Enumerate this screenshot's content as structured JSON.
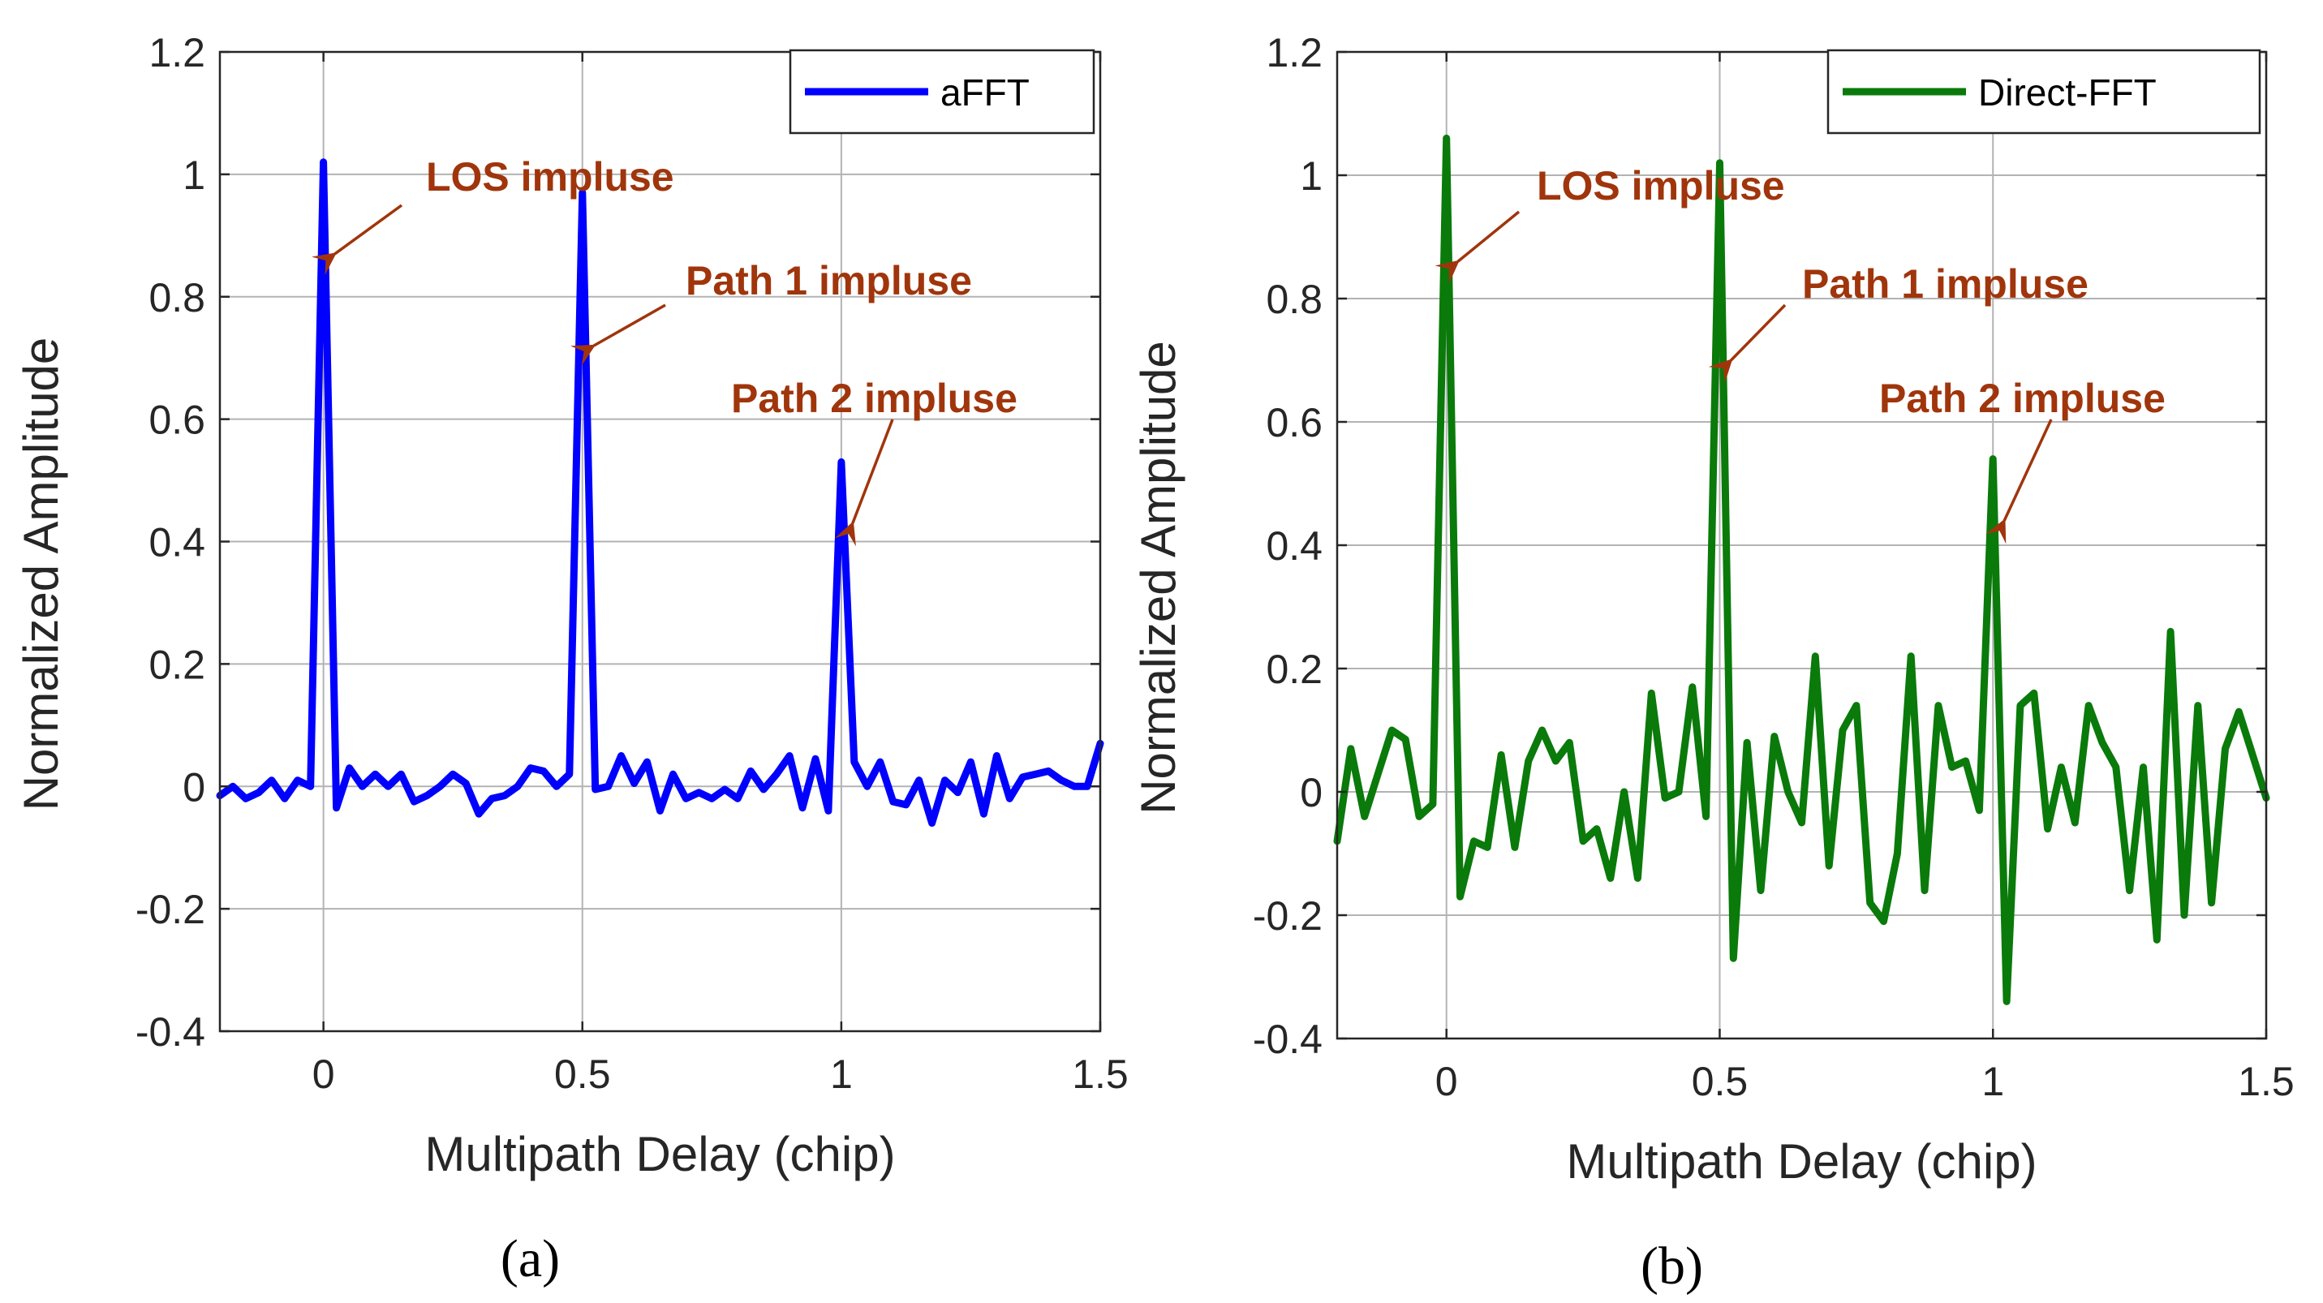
{
  "chart_data": [
    {
      "type": "line",
      "caption": "(a)",
      "xlabel": "Multipath Delay (chip)",
      "ylabel": "Normalized Amplitude",
      "xlim": [
        -0.2,
        1.5
      ],
      "ylim": [
        -0.4,
        1.2
      ],
      "xticks": [
        0,
        0.5,
        1,
        1.5
      ],
      "xtick_labels": [
        "0",
        "0.5",
        "1",
        "1.5"
      ],
      "yticks": [
        -0.4,
        -0.2,
        0,
        0.2,
        0.4,
        0.6,
        0.8,
        1,
        1.2
      ],
      "ytick_labels": [
        "-0.4",
        "-0.2",
        "0",
        "0.2",
        "0.4",
        "0.6",
        "0.8",
        "1",
        "1.2"
      ],
      "grid": true,
      "legend_position": "top-right",
      "series": [
        {
          "name": "aFFT",
          "color": "#0000ff",
          "x": [
            -0.2,
            -0.175,
            -0.15,
            -0.125,
            -0.1,
            -0.075,
            -0.05,
            -0.025,
            0,
            0.025,
            0.05,
            0.075,
            0.1,
            0.125,
            0.15,
            0.175,
            0.2,
            0.225,
            0.25,
            0.275,
            0.3,
            0.325,
            0.35,
            0.375,
            0.4,
            0.425,
            0.45,
            0.475,
            0.5,
            0.525,
            0.55,
            0.575,
            0.6,
            0.625,
            0.65,
            0.675,
            0.7,
            0.725,
            0.75,
            0.775,
            0.8,
            0.825,
            0.85,
            0.875,
            0.9,
            0.925,
            0.95,
            0.975,
            1,
            1.025,
            1.05,
            1.075,
            1.1,
            1.125,
            1.15,
            1.175,
            1.2,
            1.225,
            1.25,
            1.275,
            1.3,
            1.325,
            1.35,
            1.375,
            1.4,
            1.425,
            1.45,
            1.475,
            1.5
          ],
          "y": [
            -0.015,
            0.0,
            -0.02,
            -0.01,
            0.01,
            -0.02,
            0.01,
            0.0,
            1.02,
            -0.035,
            0.03,
            0.0,
            0.02,
            0.0,
            0.02,
            -0.025,
            -0.015,
            0.0,
            0.02,
            0.005,
            -0.045,
            -0.02,
            -0.015,
            0.0,
            0.03,
            0.025,
            0.0,
            0.02,
            0.97,
            -0.005,
            0.0,
            0.05,
            0.005,
            0.04,
            -0.04,
            0.02,
            -0.02,
            -0.01,
            -0.02,
            -0.005,
            -0.02,
            0.025,
            -0.005,
            0.02,
            0.05,
            -0.035,
            0.045,
            -0.04,
            0.53,
            0.04,
            0.0,
            0.04,
            -0.025,
            -0.03,
            0.01,
            -0.06,
            0.01,
            -0.01,
            0.04,
            -0.045,
            0.05,
            -0.02,
            0.015,
            0.02,
            0.025,
            0.01,
            0.0,
            0.0,
            0.07
          ]
        }
      ],
      "annotations": [
        {
          "text": "LOS impluse",
          "x": 0.0,
          "y": 0.87
        },
        {
          "text": "Path 1 impluse",
          "x": 0.5,
          "y": 0.72
        },
        {
          "text": "Path 2 impluse",
          "x": 1.0,
          "y": 0.43
        }
      ]
    },
    {
      "type": "line",
      "caption": "(b)",
      "xlabel": "Multipath Delay (chip)",
      "ylabel": "Normalized Amplitude",
      "xlim": [
        -0.2,
        1.5
      ],
      "ylim": [
        -0.4,
        1.2
      ],
      "xticks": [
        0,
        0.5,
        1,
        1.5
      ],
      "xtick_labels": [
        "0",
        "0.5",
        "1",
        "1.5"
      ],
      "yticks": [
        -0.4,
        -0.2,
        0,
        0.2,
        0.4,
        0.6,
        0.8,
        1,
        1.2
      ],
      "ytick_labels": [
        "-0.4",
        "-0.2",
        "0",
        "0.2",
        "0.4",
        "0.6",
        "0.8",
        "1",
        "1.2"
      ],
      "grid": true,
      "legend_position": "top-right",
      "series": [
        {
          "name": "Direct-FFT",
          "color": "#0a7a0a",
          "x": [
            -0.2,
            -0.175,
            -0.15,
            -0.125,
            -0.1,
            -0.075,
            -0.05,
            -0.025,
            0,
            0.025,
            0.05,
            0.075,
            0.1,
            0.125,
            0.15,
            0.175,
            0.2,
            0.225,
            0.25,
            0.275,
            0.3,
            0.325,
            0.35,
            0.375,
            0.4,
            0.425,
            0.45,
            0.475,
            0.5,
            0.525,
            0.55,
            0.575,
            0.6,
            0.625,
            0.65,
            0.675,
            0.7,
            0.725,
            0.75,
            0.775,
            0.8,
            0.825,
            0.85,
            0.875,
            0.9,
            0.925,
            0.95,
            0.975,
            1,
            1.025,
            1.05,
            1.075,
            1.1,
            1.125,
            1.15,
            1.175,
            1.2,
            1.225,
            1.25,
            1.275,
            1.3,
            1.325,
            1.35,
            1.375,
            1.4,
            1.425,
            1.45,
            1.475,
            1.5
          ],
          "y": [
            -0.08,
            0.07,
            -0.04,
            0.03,
            0.1,
            0.085,
            -0.04,
            -0.02,
            1.06,
            -0.17,
            -0.08,
            -0.09,
            0.06,
            -0.09,
            0.05,
            0.1,
            0.05,
            0.08,
            -0.08,
            -0.06,
            -0.14,
            0.0,
            -0.14,
            0.16,
            -0.01,
            0.0,
            0.17,
            -0.04,
            1.02,
            -0.27,
            0.08,
            -0.16,
            0.09,
            0.0,
            -0.05,
            0.22,
            -0.12,
            0.1,
            0.14,
            -0.18,
            -0.21,
            -0.1,
            0.22,
            -0.16,
            0.14,
            0.04,
            0.05,
            -0.03,
            0.54,
            -0.34,
            0.14,
            0.16,
            -0.06,
            0.04,
            -0.05,
            0.14,
            0.08,
            0.04,
            -0.16,
            0.04,
            -0.24,
            0.26,
            -0.2,
            0.14,
            -0.18,
            0.07,
            0.13,
            0.06,
            -0.01
          ]
        }
      ],
      "annotations": [
        {
          "text": "LOS impluse",
          "x": 0.0,
          "y": 0.86
        },
        {
          "text": "Path 1 impluse",
          "x": 0.5,
          "y": 0.7
        },
        {
          "text": "Path 2 impluse",
          "x": 1.0,
          "y": 0.44
        }
      ]
    }
  ],
  "colors": {
    "annotation": "#a0350c",
    "arrow": "#a0350c"
  }
}
